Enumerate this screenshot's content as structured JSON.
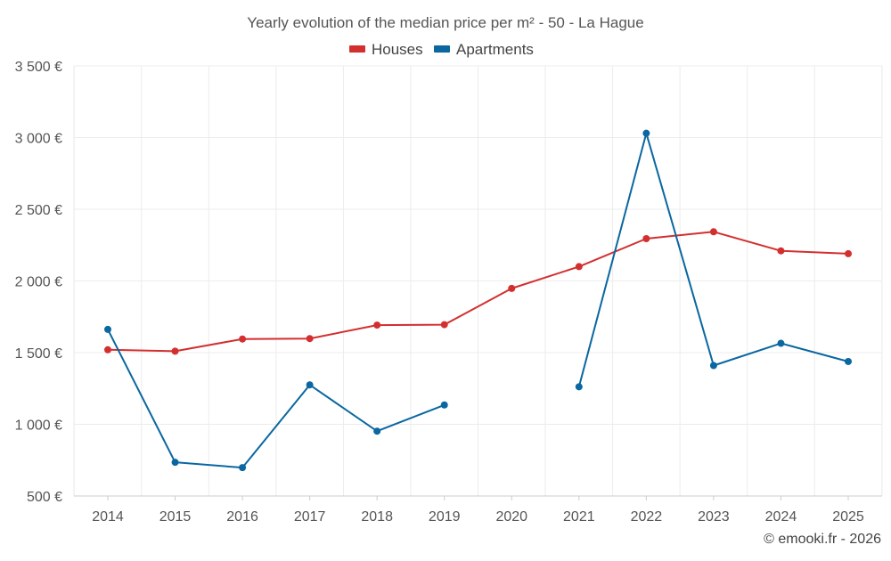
{
  "chart_data": {
    "type": "line",
    "title": "Yearly evolution of the median price per m² - 50 - La Hague",
    "xlabel": "",
    "ylabel": "",
    "categories": [
      "2014",
      "2015",
      "2016",
      "2017",
      "2018",
      "2019",
      "2020",
      "2021",
      "2022",
      "2023",
      "2024",
      "2025"
    ],
    "ylim": [
      500,
      3500
    ],
    "yticks": [
      500,
      1000,
      1500,
      2000,
      2500,
      3000,
      3500
    ],
    "ytick_labels": [
      "500 €",
      "1 000 €",
      "1 500 €",
      "2 000 €",
      "2 500 €",
      "3 000 €",
      "3 500 €"
    ],
    "grid": true,
    "legend_position": "top-center",
    "series": [
      {
        "name": "Houses",
        "color": "#d32f2f",
        "values": [
          1520,
          1510,
          1595,
          1598,
          1692,
          1695,
          1948,
          2100,
          2295,
          2343,
          2210,
          2190
        ]
      },
      {
        "name": "Apartments",
        "color": "#0a67a0",
        "values": [
          1662,
          735,
          698,
          1275,
          952,
          1135,
          null,
          1262,
          3030,
          1410,
          1565,
          1438
        ]
      }
    ]
  },
  "footer": {
    "credit": "© emooki.fr - 2026"
  }
}
